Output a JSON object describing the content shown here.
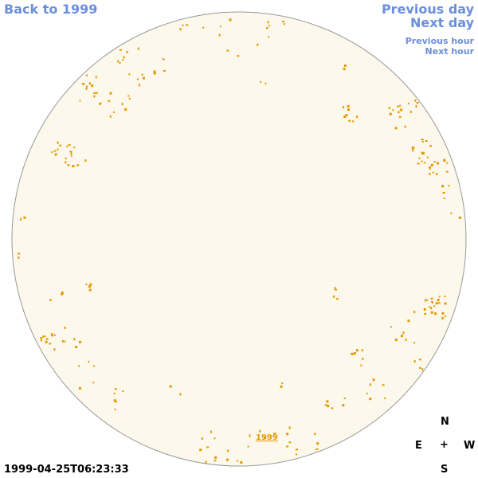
{
  "nav": {
    "back": "Back to 1999",
    "previous_day": "Previous day",
    "next_day": "Next day",
    "previous_hour": "Previous hour",
    "next_hour": "Next hour"
  },
  "timestamp": "1999-04-25T06:23:33",
  "year_label": "1999",
  "compass": {
    "n": "N",
    "e": "E",
    "center": "+",
    "w": "W",
    "s": "S"
  },
  "colors": {
    "nav_link": "#6b8fdc",
    "disk_fill": "#fdf8ec",
    "disk_stroke": "#999999",
    "feature": "#e59800"
  }
}
